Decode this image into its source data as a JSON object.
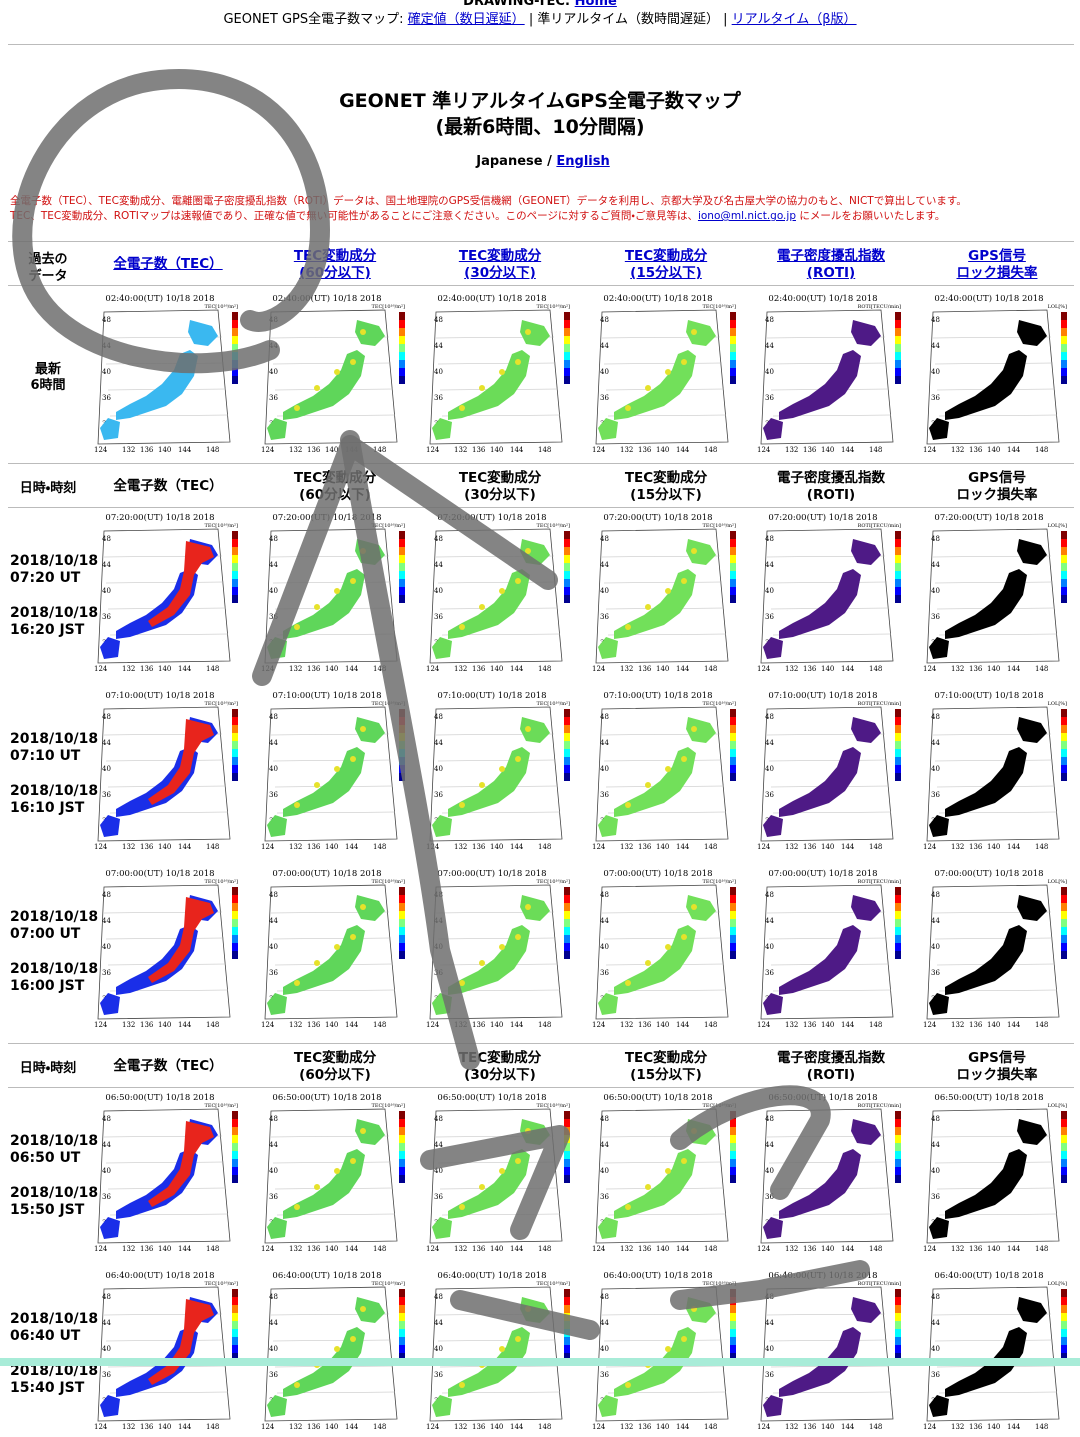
{
  "header": {
    "site": "DRAWING-TEC:",
    "home": "Home",
    "nav_label": "GEONET GPS全電子数マップ:",
    "nav_links": [
      "確定値（数日遅延）",
      "準リアルタイム（数時間遅延）",
      "リアルタイム（β版）"
    ],
    "separator": "|"
  },
  "title": [
    "GEONET 準リアルタイムGPS全電子数マップ",
    "(最新6時間、10分間隔)"
  ],
  "language": {
    "current": "Japanese",
    "separator": "/",
    "link": "English"
  },
  "notice": {
    "line1": "全電子数（TEC）、TEC変動成分、電離圏電子密度擾乱指数（ROTI）データは、国土地理院のGPS受信機網（GEONET）データを利用し、京都大学及び名古屋大学の協力のもと、NICTで算出しています。",
    "line2": "TEC、TEC変動成分、ROTIマップは速報値であり、正確な値で無い可能性があることにご注意ください。このページに対するご質問・ご意見等は、",
    "email": "iono@ml.nict.go.jp",
    "line2_end": "にメールをお願いいたします。"
  },
  "past_label": [
    "過去の",
    "データ"
  ],
  "latest_label": [
    "最新",
    "6時間"
  ],
  "columns": [
    [
      "全電子数（TEC）"
    ],
    [
      "TEC変動成分",
      "(60分以下)"
    ],
    [
      "TEC変動成分",
      "(30分以下)"
    ],
    [
      "TEC変動成分",
      "(15分以下)"
    ],
    [
      "電子密度擾乱指数",
      "(ROTI)"
    ],
    [
      "GPS信号",
      "ロック損失率"
    ]
  ],
  "section_label": "日時・時刻",
  "latest_map_label": "02:40:00(UT) 10/18 2018",
  "map_units": [
    "TEC[10¹⁶/m²]",
    "TEC[10¹⁶/m²]",
    "TEC[10¹⁶/m²]",
    "TEC[10¹⁶/m²]",
    "ROTI[TECU/min]",
    "LOL[%]"
  ],
  "map_lat_labels": [
    "48",
    "44",
    "40",
    "36",
    "32"
  ],
  "map_lon_labels": [
    "124",
    "132",
    "136",
    "140",
    "144",
    "148"
  ],
  "rows": [
    {
      "ut_date": "2018/10/18",
      "ut_time": "07:20 UT",
      "jst_date": "2018/10/18",
      "jst_time": "16:20 JST",
      "map_label": "07:20:00(UT) 10/18 2018"
    },
    {
      "ut_date": "2018/10/18",
      "ut_time": "07:10 UT",
      "jst_date": "2018/10/18",
      "jst_time": "16:10 JST",
      "map_label": "07:10:00(UT) 10/18 2018"
    },
    {
      "ut_date": "2018/10/18",
      "ut_time": "07:00 UT",
      "jst_date": "2018/10/18",
      "jst_time": "16:00 JST",
      "map_label": "07:00:00(UT) 10/18 2018"
    },
    {
      "ut_date": "2018/10/18",
      "ut_time": "06:50 UT",
      "jst_date": "2018/10/18",
      "jst_time": "15:50 JST",
      "map_label": "06:50:00(UT) 10/18 2018"
    },
    {
      "ut_date": "2018/10/18",
      "ut_time": "06:40 UT",
      "jst_date": "2018/10/18",
      "jst_time": "15:40 JST",
      "map_label": "06:40:00(UT) 10/18 2018"
    }
  ]
}
